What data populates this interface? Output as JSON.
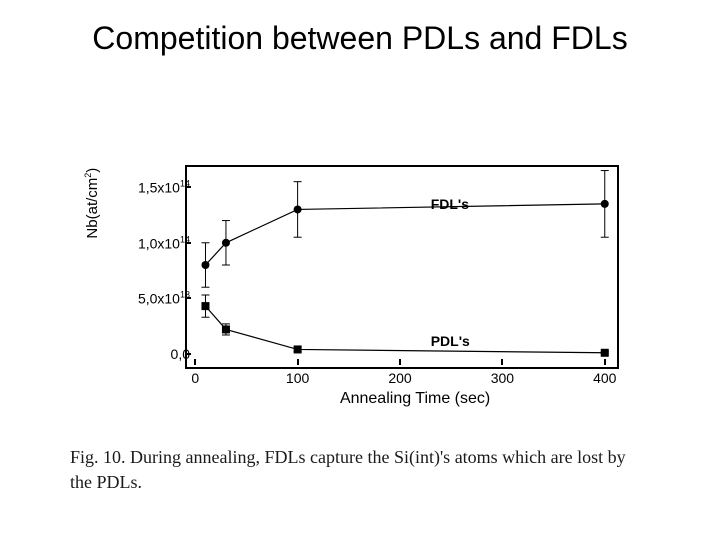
{
  "title": "Competition between PDLs and FDLs",
  "chart": {
    "type": "line-scatter-errorbar",
    "xlabel": "Annealing Time (sec)",
    "ylabel_html": "Nb(at/cm<sup>2</sup>)",
    "background_color": "#ffffff",
    "axis_color": "#000000",
    "xlim": [
      -10,
      410
    ],
    "ylim": [
      -10000000000000.0,
      170000000000000.0
    ],
    "xticks": [
      0,
      100,
      200,
      300,
      400
    ],
    "xtick_labels": [
      "0",
      "100",
      "200",
      "300",
      "400"
    ],
    "yticks": [
      0,
      50000000000000.0,
      100000000000000.0,
      150000000000000.0
    ],
    "ytick_labels_html": [
      "0,0",
      "5,0x10<sup>13</sup>",
      "1,0x10<sup>14</sup>",
      "1,5x10<sup>14</sup>"
    ],
    "series": [
      {
        "name": "FDL's",
        "label_pos": {
          "x": 230,
          "y": 135000000000000.0
        },
        "marker": "circle",
        "marker_size": 4,
        "color": "#000000",
        "line_width": 1.2,
        "points": [
          {
            "x": 10,
            "y": 80000000000000.0,
            "err": 20000000000000.0
          },
          {
            "x": 30,
            "y": 100000000000000.0,
            "err": 20000000000000.0
          },
          {
            "x": 100,
            "y": 130000000000000.0,
            "err": 25000000000000.0
          },
          {
            "x": 400,
            "y": 135000000000000.0,
            "err": 30000000000000.0
          }
        ]
      },
      {
        "name": "PDL's",
        "label_pos": {
          "x": 230,
          "y": 12000000000000.0
        },
        "marker": "square",
        "marker_size": 4,
        "color": "#000000",
        "line_width": 1.2,
        "points": [
          {
            "x": 10,
            "y": 43000000000000.0,
            "err": 10000000000000.0
          },
          {
            "x": 30,
            "y": 22000000000000.0,
            "err": 5000000000000.0
          },
          {
            "x": 100,
            "y": 4000000000000.0,
            "err": 2000000000000.0
          },
          {
            "x": 400,
            "y": 1000000000000.0,
            "err": 1000000000000.0
          }
        ]
      }
    ]
  },
  "caption": "Fig. 10. During annealing, FDLs capture the Si(int)'s atoms which are lost by the PDLs."
}
